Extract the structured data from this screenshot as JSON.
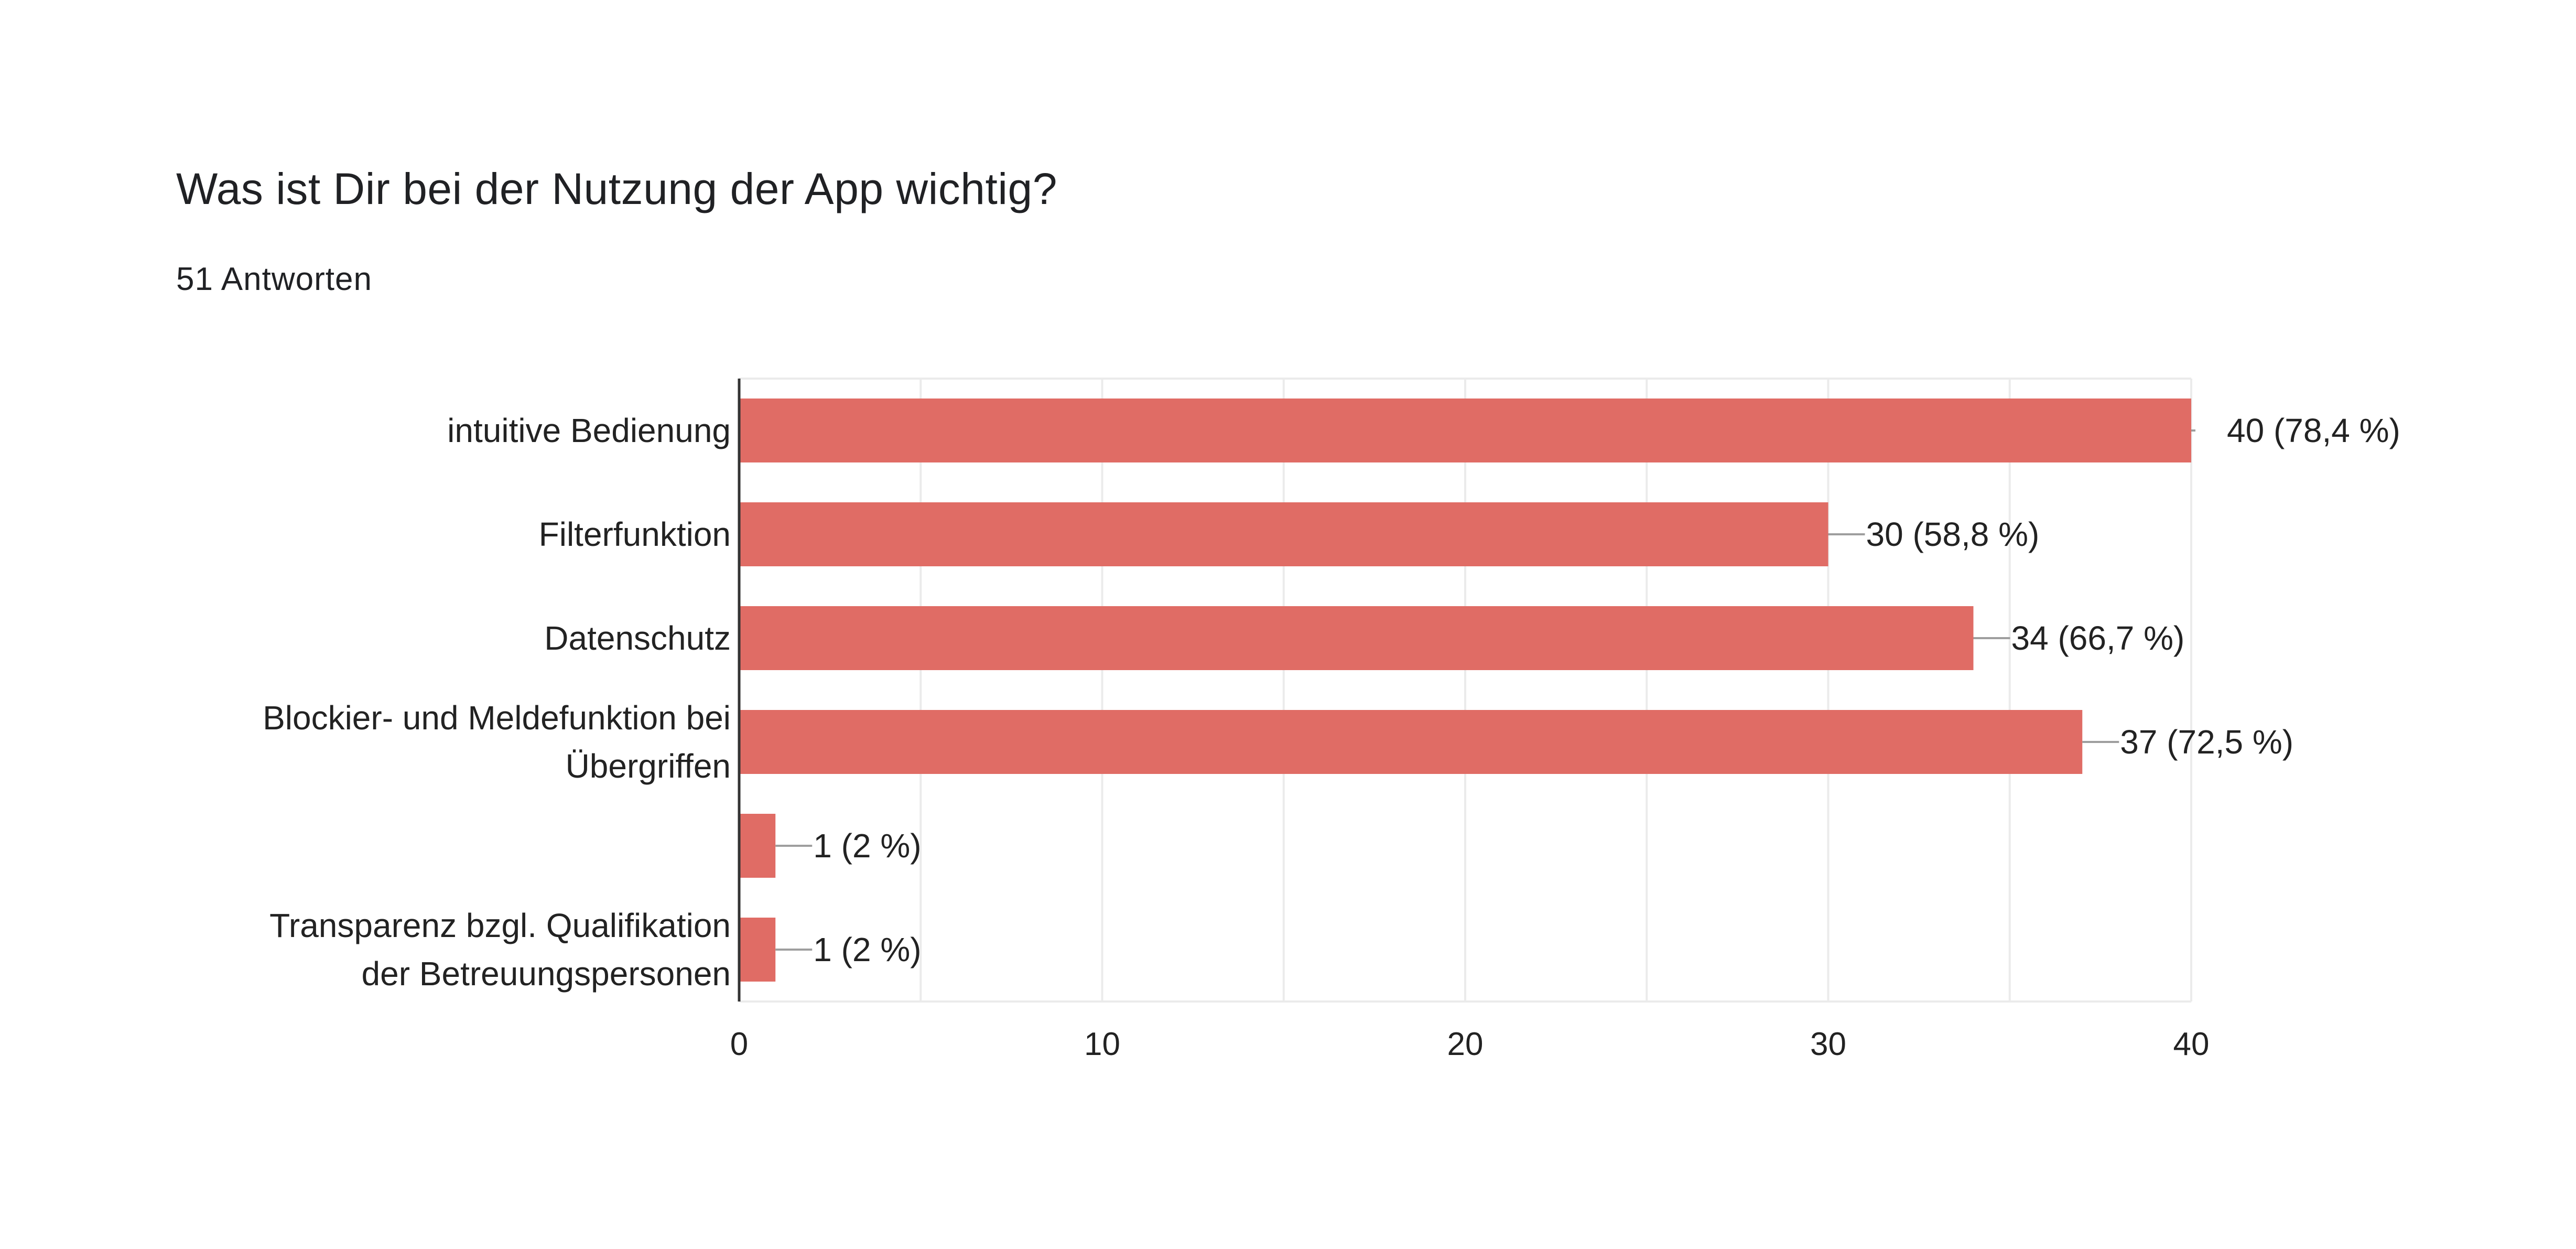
{
  "header": {
    "title": "Was ist Dir bei der Nutzung der App wichtig?",
    "responses": "51 Antworten"
  },
  "chart_data": {
    "type": "bar",
    "orientation": "horizontal",
    "title": "Was ist Dir bei der Nutzung der App wichtig?",
    "xlabel": "",
    "ylabel": "",
    "xlim": [
      0,
      40
    ],
    "xticks": [
      0,
      10,
      20,
      30,
      40
    ],
    "grid": true,
    "bar_color": "#e06c65",
    "categories": [
      [
        "intuitive Bedienung"
      ],
      [
        "Filterfunktion"
      ],
      [
        "Datenschutz"
      ],
      [
        "Blockier- und Meldefunktion bei",
        "Übergriffen"
      ],
      [
        ""
      ],
      [
        "Transparenz bzgl. Qualifikation",
        "der Betreuungspersonen"
      ]
    ],
    "values": [
      40,
      30,
      34,
      37,
      1,
      1
    ],
    "data_labels": [
      "40 (78,4 %)",
      "30 (58,8 %)",
      "34 (66,7 %)",
      "37 (72,5 %)",
      "1 (2 %)",
      "1 (2 %)"
    ]
  }
}
